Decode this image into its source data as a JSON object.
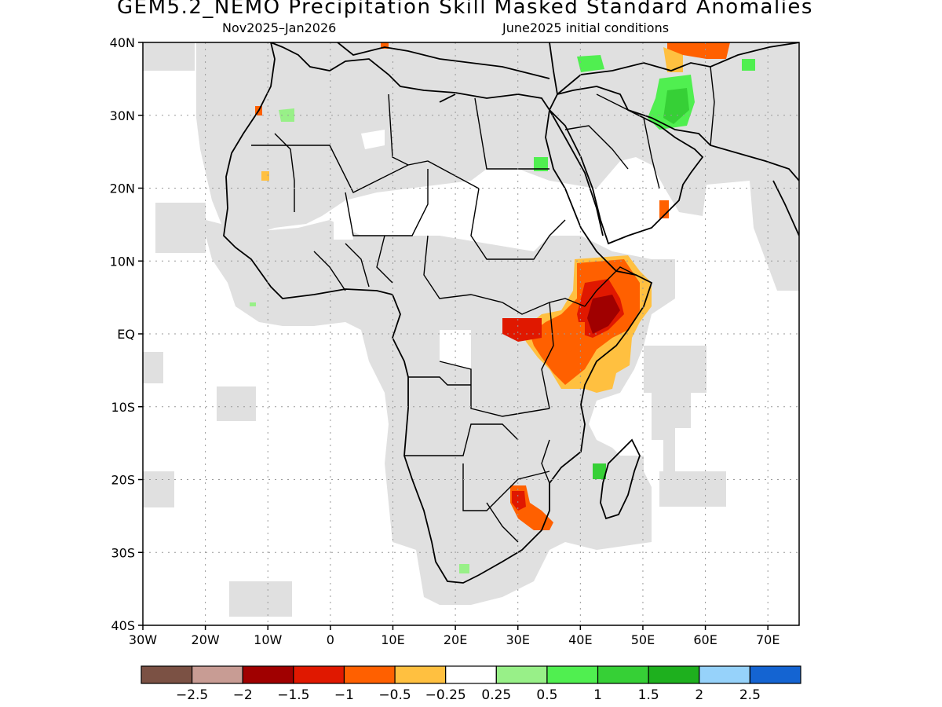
{
  "title": "GEM5.2_NEMO Precipitation Skill Masked Standard Anomalies",
  "subtitle_left": "Nov2025–Jan2026",
  "subtitle_right": "June2025 initial conditions",
  "map": {
    "lon_range": [
      -30,
      75
    ],
    "lat_range": [
      -40,
      40
    ],
    "lat_labels": [
      "40N",
      "30N",
      "20N",
      "10N",
      "EQ",
      "10S",
      "20S",
      "30S",
      "40S"
    ],
    "lat_values": [
      40,
      30,
      20,
      10,
      0,
      -10,
      -20,
      -30,
      -40
    ],
    "lon_labels": [
      "30W",
      "20W",
      "10W",
      "0",
      "10E",
      "20E",
      "30E",
      "40E",
      "50E",
      "60E",
      "70E"
    ],
    "lon_values": [
      -30,
      -20,
      -10,
      0,
      10,
      20,
      30,
      40,
      50,
      60,
      70
    ],
    "grid": true,
    "masked_color": "#e0e0e0",
    "land_outline_color": "#000000"
  },
  "colorbar": {
    "colors": [
      "#7b5144",
      "#c89c94",
      "#a00000",
      "#e01800",
      "#ff6000",
      "#ffc040",
      "#ffffff",
      "#98f088",
      "#50ef50",
      "#36d036",
      "#1eb01e",
      "#96d2fa",
      "#1464d2"
    ],
    "labels": [
      "−2.5",
      "−2",
      "−1.5",
      "−1",
      "−0.5",
      "−0.25",
      "0.25",
      "0.5",
      "1",
      "1.5",
      "2",
      "2.5"
    ]
  }
}
